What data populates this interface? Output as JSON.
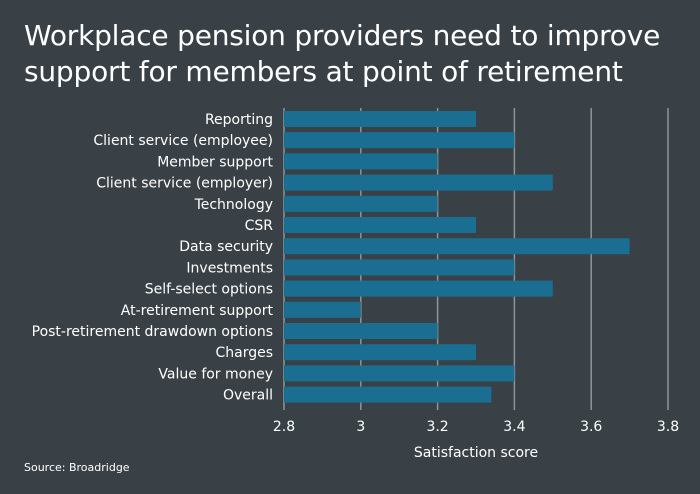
{
  "title": "Workplace pension providers need to improve support for members at point of retirement",
  "source": "Source: Broadridge",
  "colors": {
    "background": "#3a4146",
    "bar": "#1a6e92",
    "grid": "#8e9598",
    "text": "#ffffff"
  },
  "chart_data": {
    "type": "bar",
    "orientation": "horizontal",
    "categories": [
      "Reporting",
      "Client service (employee)",
      "Member support",
      "Client service (employer)",
      "Technology",
      "CSR",
      "Data security",
      "Investments",
      "Self-select options",
      "At-retirement support",
      "Post-retirement drawdown options",
      "Charges",
      "Value for money",
      "Overall"
    ],
    "values": [
      3.3,
      3.4,
      3.2,
      3.5,
      3.2,
      3.3,
      3.7,
      3.4,
      3.5,
      3.0,
      3.2,
      3.3,
      3.4,
      3.34
    ],
    "xlabel": "Satisfaction score",
    "ylabel": "",
    "xlim": [
      2.8,
      3.8
    ],
    "xticks": [
      2.8,
      3,
      3.2,
      3.4,
      3.6,
      3.8
    ],
    "grid": true,
    "legend": "none"
  }
}
